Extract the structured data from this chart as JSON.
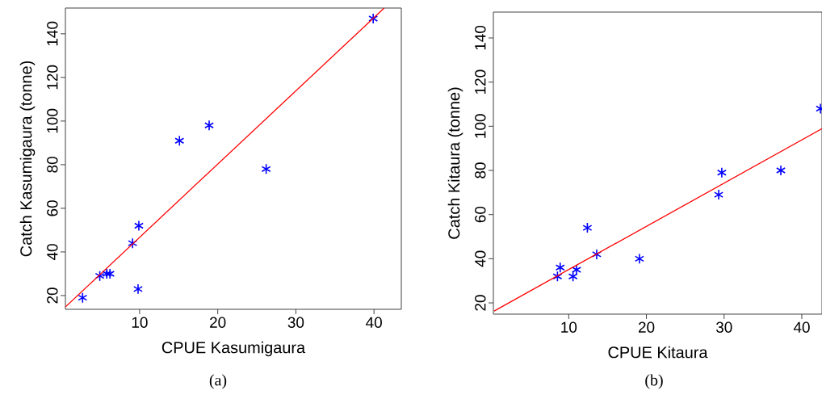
{
  "chart_data": [
    {
      "type": "scatter",
      "xlabel": "CPUE Kasumigaura",
      "ylabel": "Catch Kasumigaura (tonne)",
      "xlim": [
        0.5,
        43.5
      ],
      "ylim": [
        13.7,
        151.8
      ],
      "xticks": [
        10,
        20,
        30,
        40
      ],
      "yticks": [
        20,
        40,
        60,
        80,
        100,
        120,
        140
      ],
      "grid": false,
      "legend": false,
      "annotations": [
        "(a)"
      ],
      "series": [
        {
          "color": "#0000ff",
          "marker": "cross",
          "x": [
            2.7,
            4.9,
            5.8,
            6.2,
            9.1,
            9.9,
            9.8,
            15.1,
            18.9,
            26.2,
            39.9
          ],
          "values": [
            19,
            29,
            30,
            30,
            44,
            52,
            23,
            91,
            98,
            78,
            147
          ]
        },
        {
          "type": "line",
          "color": "#ff0000",
          "marker": "none",
          "line_style": "solid",
          "x": [
            0.5,
            41.3
          ],
          "values": [
            14.8,
            151.8
          ]
        }
      ]
    },
    {
      "type": "scatter",
      "xlabel": "CPUE Kitaura",
      "ylabel": "Catch Kitaura (tonne)",
      "xlim": [
        0.3,
        42.6
      ],
      "ylim": [
        14.9,
        151.7
      ],
      "xticks": [
        10,
        20,
        30,
        40
      ],
      "yticks": [
        20,
        40,
        60,
        80,
        100,
        120,
        140
      ],
      "grid": false,
      "legend": false,
      "annotations": [
        "(b)"
      ],
      "series": [
        {
          "color": "#0000ff",
          "marker": "cross",
          "x": [
            8.55,
            8.9,
            10.55,
            11.0,
            12.4,
            13.6,
            19.1,
            29.3,
            29.7,
            37.3,
            42.4
          ],
          "values": [
            32,
            36,
            32,
            35,
            54,
            42,
            40,
            69,
            79,
            80,
            108
          ]
        },
        {
          "type": "line",
          "color": "#ff0000",
          "marker": "none",
          "line_style": "solid",
          "x": [
            0.4,
            42.6
          ],
          "values": [
            16.3,
            98.9
          ]
        }
      ]
    }
  ]
}
